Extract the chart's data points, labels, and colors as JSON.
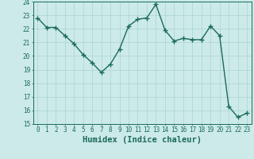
{
  "x": [
    0,
    1,
    2,
    3,
    4,
    5,
    6,
    7,
    8,
    9,
    10,
    11,
    12,
    13,
    14,
    15,
    16,
    17,
    18,
    19,
    20,
    21,
    22,
    23
  ],
  "y": [
    22.8,
    22.1,
    22.1,
    21.5,
    20.9,
    20.1,
    19.5,
    18.8,
    19.4,
    20.5,
    22.2,
    22.7,
    22.8,
    23.8,
    21.9,
    21.1,
    21.3,
    21.2,
    21.2,
    22.2,
    21.5,
    16.3,
    15.5,
    15.8
  ],
  "line_color": "#1a6b5a",
  "marker": "+",
  "markersize": 4,
  "linewidth": 1.0,
  "bgcolor": "#cceae8",
  "grid_color": "#aad4d0",
  "xlabel": "Humidex (Indice chaleur)",
  "xlim": [
    -0.5,
    23.5
  ],
  "ylim": [
    15,
    24
  ],
  "yticks": [
    15,
    16,
    17,
    18,
    19,
    20,
    21,
    22,
    23,
    24
  ],
  "xticks": [
    0,
    1,
    2,
    3,
    4,
    5,
    6,
    7,
    8,
    9,
    10,
    11,
    12,
    13,
    14,
    15,
    16,
    17,
    18,
    19,
    20,
    21,
    22,
    23
  ],
  "tick_fontsize": 5.5,
  "label_fontsize": 7.5
}
